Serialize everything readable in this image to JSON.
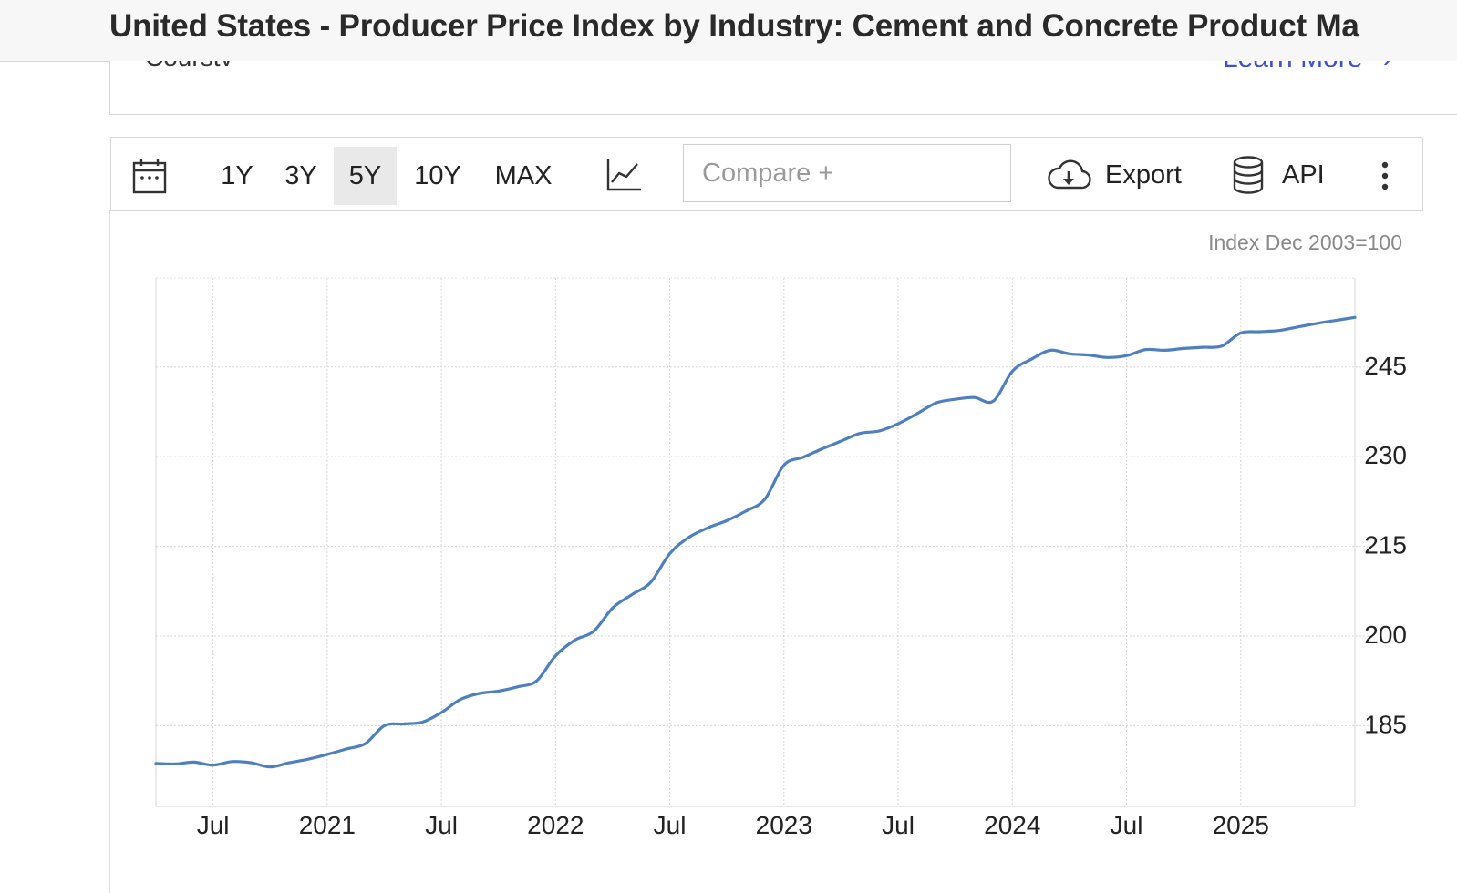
{
  "header": {
    "title": "United States - Producer Price Index by Industry: Cement and Concrete Product Ma"
  },
  "top_panel": {
    "left_text": "Courstv",
    "right_text": "Learn More"
  },
  "toolbar": {
    "ranges": [
      {
        "label": "1Y",
        "active": false
      },
      {
        "label": "3Y",
        "active": false
      },
      {
        "label": "5Y",
        "active": true
      },
      {
        "label": "10Y",
        "active": false
      },
      {
        "label": "MAX",
        "active": false
      }
    ],
    "compare_placeholder": "Compare +",
    "export_label": "Export",
    "api_label": "API",
    "icons": [
      "calendar-icon",
      "line-chart-icon",
      "cloud-download-icon",
      "database-icon",
      "more-vertical-icon"
    ]
  },
  "chart_data": {
    "type": "line",
    "unit_label": "Index Dec 2003=100",
    "y_ticks": [
      185,
      200,
      215,
      230,
      245
    ],
    "ylim": [
      171.5,
      259.9
    ],
    "x_ticks": [
      {
        "label": "Jul",
        "date": "2020-07"
      },
      {
        "label": "2021",
        "date": "2021-01"
      },
      {
        "label": "Jul",
        "date": "2021-07"
      },
      {
        "label": "2022",
        "date": "2022-01"
      },
      {
        "label": "Jul",
        "date": "2022-07"
      },
      {
        "label": "2023",
        "date": "2023-01"
      },
      {
        "label": "Jul",
        "date": "2023-07"
      },
      {
        "label": "2024",
        "date": "2024-01"
      },
      {
        "label": "Jul",
        "date": "2024-07"
      },
      {
        "label": "2025",
        "date": "2025-01"
      }
    ],
    "xlim": [
      "2020-04",
      "2025-07"
    ],
    "grid": true,
    "line_color": "#4f7fbf",
    "series": [
      {
        "x": [
          "2020-04",
          "2020-05",
          "2020-06",
          "2020-07",
          "2020-08",
          "2020-09",
          "2020-10",
          "2020-11",
          "2020-12",
          "2021-01",
          "2021-02",
          "2021-03",
          "2021-04",
          "2021-05",
          "2021-06",
          "2021-07",
          "2021-08",
          "2021-09",
          "2021-10",
          "2021-11",
          "2021-12",
          "2022-01",
          "2022-02",
          "2022-03",
          "2022-04",
          "2022-05",
          "2022-06",
          "2022-07",
          "2022-08",
          "2022-09",
          "2022-10",
          "2022-11",
          "2022-12",
          "2023-01",
          "2023-02",
          "2023-03",
          "2023-04",
          "2023-05",
          "2023-06",
          "2023-07",
          "2023-08",
          "2023-09",
          "2023-10",
          "2023-11",
          "2023-12",
          "2024-01",
          "2024-02",
          "2024-03",
          "2024-04",
          "2024-05",
          "2024-06",
          "2024-07",
          "2024-08",
          "2024-09",
          "2024-10",
          "2024-11",
          "2024-12",
          "2025-01",
          "2025-02",
          "2025-03",
          "2025-04",
          "2025-05",
          "2025-06",
          "2025-07"
        ],
        "y": [
          178.7,
          178.6,
          178.9,
          178.4,
          179.0,
          178.8,
          178.1,
          178.8,
          179.4,
          180.2,
          181.1,
          182.0,
          185.0,
          185.3,
          185.6,
          187.2,
          189.4,
          190.4,
          190.8,
          191.5,
          192.5,
          196.7,
          199.3,
          200.8,
          204.7,
          206.9,
          209.0,
          213.8,
          216.5,
          218.1,
          219.3,
          220.9,
          222.9,
          228.6,
          229.9,
          231.3,
          232.6,
          233.9,
          234.3,
          235.5,
          237.2,
          239.0,
          239.6,
          239.9,
          239.3,
          244.3,
          246.3,
          247.8,
          247.2,
          247.0,
          246.6,
          246.9,
          247.9,
          247.8,
          248.1,
          248.3,
          248.5,
          250.7,
          250.9,
          251.1,
          251.7,
          252.3,
          252.8,
          253.3
        ]
      }
    ]
  }
}
